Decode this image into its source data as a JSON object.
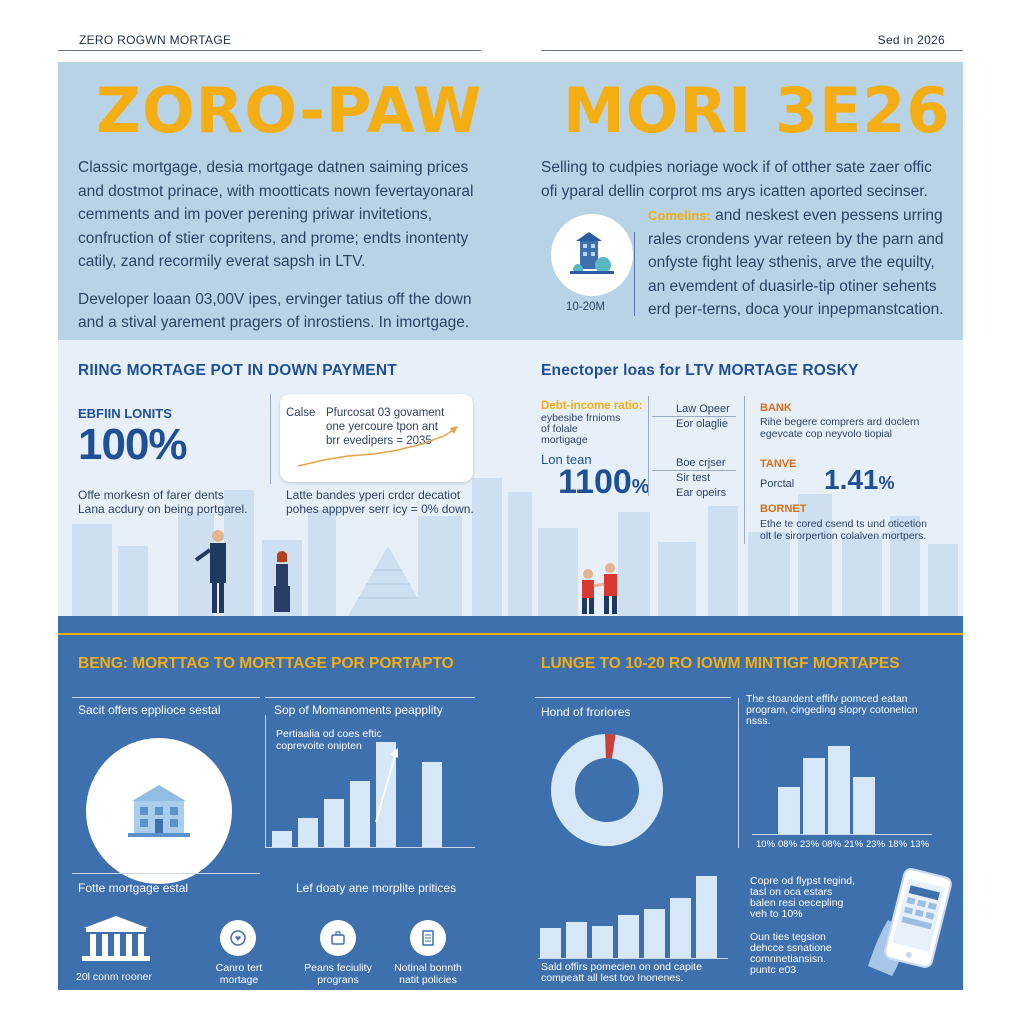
{
  "header": {
    "left": "ZERO ROGWN MORTAGE",
    "right": "Sed in 2026"
  },
  "hero": {
    "title_left": "ZORO-PAW",
    "title_right": "MORI 3E26",
    "left_lines": [
      "Classic mortgage, desia mortgage datnen saiming prices",
      "and dostmot prinace, with mootticats nown fevertayonaral",
      "cemments and im pover perening priwar invitetions,",
      "confruction of stier copritens, and prome; endts inontenty",
      "catily, zand recormily everat sapsh in LTV.",
      "Developer loaan 03,00V ipes, ervinger tatius off the down",
      "and a stival yarement pragers of inrostiens. In imortgage."
    ],
    "right_lines_top": [
      "Selling to cudpies noriage wock if of otther sate zaer offic",
      "ofi yparal dellin corprot ms arys icatten aported secinser."
    ],
    "right_highlight": "Comelins:",
    "right_lines_bottom": [
      "and neskest even pessens urring",
      "rales crondens yvar reteen by the parn and",
      "onfyste fight leay sthenis, arve the equilty,",
      "an evemdent of duasirle-tip otiner sehents",
      "erd per-terns, doca your inpepmanstcation."
    ],
    "icon_caption": "10-20M"
  },
  "mid_left": {
    "title": "RIING MORTAGE POT IN DOWN PAYMENT",
    "stat_label": "EBFIIN LONITS",
    "stat_value": "100%",
    "stat_desc": [
      "Offe morkesn of farer dents",
      "Lana acdury on being portgarel."
    ],
    "card_label": "Calse",
    "card_lines": [
      "Pfurcosat 03 govament",
      "one yercoure tpon ant",
      "brr evedipers = 2035"
    ],
    "note_lines": [
      "Latte  bandes  yperi crdcr decatiot",
      "pohes apppver serr icy = 0% down."
    ]
  },
  "mid_right": {
    "title": "Enectoper loas for LTV MORTAGE ROSKY",
    "dti_title": "Debt-income ratio:",
    "dti_lines": [
      "eybesibe  frnioms",
      "of  folale",
      "mortigage"
    ],
    "loan_label": "Lon tean",
    "loan_value": "1100",
    "loan_unit": "%",
    "list_top": [
      "Law Opeer",
      "Eor olaglie"
    ],
    "list_bottom": [
      "Boe crjser",
      "Sir test",
      "Ear opeirs"
    ],
    "bank_title": "BANK",
    "bank_lines": [
      "Rihe begere comprers ard doclern",
      "egevcate cop neyvolo tiopial"
    ],
    "tanve_title": "TANVE",
    "portal_label": "Porctal",
    "portal_value": "1.41",
    "portal_unit": "%",
    "bornet_title": "BORNET",
    "bornet_lines": [
      "Ethe te cored csend ts und oticetion",
      "olt le sirorpertion colalven mortpers."
    ]
  },
  "lower_left": {
    "title": "BENG: MORTTAG TO MORTTAGE POR PORTAPTO",
    "col1_title": "Sacit offers epplioce sestal",
    "col2_title": "Sop of Momanoments peapplity",
    "col2_sub": [
      "Pertiaalia od coes eftic",
      "coprevoite onipten"
    ],
    "bars": [
      0.12,
      0.22,
      0.37,
      0.5,
      0.8,
      0.65
    ],
    "bottom_left_title": "Fotte mortgage estal",
    "bottom_mid_title": "Lef doaty ane morplite pritices",
    "icons": [
      {
        "label": "20l conm rooner"
      },
      {
        "label1": "Canro tert",
        "label2": "mortage"
      },
      {
        "label1": "Peans feciulity",
        "label2": "prograns"
      },
      {
        "label1": "Notinal bonnth",
        "label2": "natit policies"
      }
    ]
  },
  "lower_right": {
    "title": "LUNGE TO 10-20 RO IOWM MINTIGF MORTAPES",
    "donut_title": "Hond of froriores",
    "donut_value": 0.97,
    "histo_desc": [
      "The stoandent effifv pomced eatan",
      "program, cingeding slopry cotoneticn",
      "nsss."
    ],
    "histo_bars": [
      0.45,
      0.73,
      0.85,
      0.55
    ],
    "histo_labels": [
      "10%",
      "08%",
      "23%",
      "08%",
      "21%",
      "23%",
      "18%",
      "13%"
    ],
    "bars2": [
      0.35,
      0.42,
      0.37,
      0.5,
      0.57,
      0.7,
      0.95
    ],
    "bars2_caption": [
      "Sald offirs pomecien on ond capite",
      "compeatt all lest too Inonenes."
    ],
    "phone_lines_top": [
      "Copre od flypst tegind,",
      "tasl on oca estars",
      "balen resi oecepling",
      "veh to 10%"
    ],
    "phone_lines_bottom": [
      "Oun ties tegsion",
      "dehcce ssnatione",
      "comnnetiansisn.",
      "puntc e03."
    ]
  },
  "colors": {
    "accent_yellow": "#f4ad12",
    "dark_blue": "#1f4f96",
    "light_panel": "#b8d3e6",
    "pale_panel": "#e7f0f9",
    "deep_panel": "#3d70ad"
  }
}
